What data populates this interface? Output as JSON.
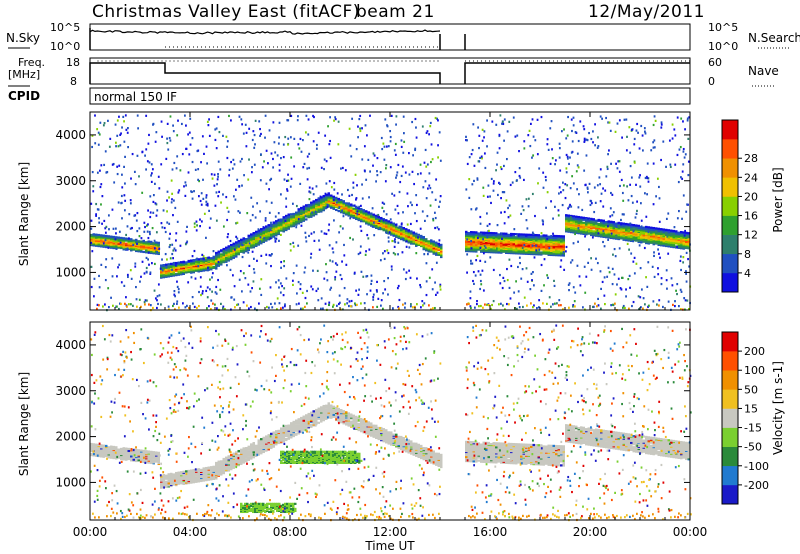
{
  "header": {
    "title": "Christmas Valley East (fitACF)",
    "beam": "beam 21",
    "date": "12/May/2011"
  },
  "panels": {
    "nsky": {
      "label": "N.Sky",
      "ticks": [
        "10^5",
        "10^0"
      ],
      "right_label": "N.Search",
      "right_ticks": [
        "10^5",
        "10^0"
      ]
    },
    "freq": {
      "label_line1": "Freq.",
      "label_line2": "[MHz]",
      "ticks": [
        "18",
        "8"
      ],
      "right_label": "Nave",
      "right_ticks": [
        "60",
        "0"
      ]
    },
    "cpid": {
      "label": "CPID",
      "value": "normal 150 IF"
    }
  },
  "colors": {
    "power": [
      "#1010e0",
      "#2050c0",
      "#2e7f6c",
      "#2fa02f",
      "#88d000",
      "#f0c000",
      "#f09000",
      "#ff5000",
      "#e00000"
    ],
    "velocity": [
      "#1a1ac8",
      "#207ad0",
      "#2a8a3a",
      "#7ad030",
      "#c8c8c0",
      "#f0c020",
      "#f09000",
      "#ff5000",
      "#e00000"
    ],
    "noise_gray": "#c8c8c0"
  },
  "chart_data": [
    {
      "type": "heatmap",
      "name": "power",
      "ylabel": "Slant Range [km]",
      "yticks": [
        "1000",
        "2000",
        "3000",
        "4000"
      ],
      "ylim": [
        180,
        4500
      ],
      "xlim": [
        0,
        24
      ],
      "colorbar_label": "Power [dB]",
      "colorbar_ticks": [
        "4",
        "8",
        "12",
        "16",
        "20",
        "24",
        "28"
      ],
      "data_gap_hours": [
        14.0,
        15.0
      ],
      "echo_bands": [
        {
          "t0": 0.0,
          "t1": 2.8,
          "r0": 1750,
          "r1": 1550,
          "width": 260,
          "max_db": 26
        },
        {
          "t0": 2.8,
          "t1": 5.0,
          "r0": 1050,
          "r1": 1250,
          "width": 280,
          "max_db": 24
        },
        {
          "t0": 5.0,
          "t1": 9.5,
          "r0": 1300,
          "r1": 2600,
          "width": 320,
          "max_db": 18
        },
        {
          "t0": 9.5,
          "t1": 14.0,
          "r0": 2600,
          "r1": 1500,
          "width": 280,
          "max_db": 24
        },
        {
          "t0": 15.0,
          "t1": 19.0,
          "r0": 1700,
          "r1": 1600,
          "width": 420,
          "max_db": 28
        },
        {
          "t0": 19.0,
          "t1": 24.0,
          "r0": 2100,
          "r1": 1700,
          "width": 360,
          "max_db": 22
        }
      ]
    },
    {
      "type": "heatmap",
      "name": "velocity",
      "xlabel": "Time UT",
      "xticks": [
        "00:00",
        "04:00",
        "08:00",
        "12:00",
        "16:00",
        "20:00",
        "00:00"
      ],
      "ylabel": "Slant Range [km]",
      "yticks": [
        "1000",
        "2000",
        "3000",
        "4000"
      ],
      "ylim": [
        180,
        4500
      ],
      "xlim": [
        0,
        24
      ],
      "colorbar_label": "Velocity [m s-1]",
      "colorbar_ticks": [
        "200",
        "100",
        "50",
        "15",
        "-15",
        "-50",
        "-100",
        "-200"
      ],
      "data_gap_hours": [
        14.0,
        15.0
      ]
    }
  ]
}
